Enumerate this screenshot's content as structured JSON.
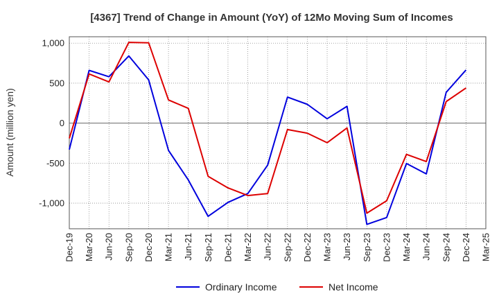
{
  "chart_data": {
    "type": "line",
    "title": "[4367]  Trend of Change in Amount (YoY) of 12Mo Moving Sum of Incomes",
    "xlabel": "",
    "ylabel": "Amount (million yen)",
    "categories": [
      "Dec-19",
      "Mar-20",
      "Jun-20",
      "Sep-20",
      "Dec-20",
      "Mar-21",
      "Jun-21",
      "Sep-21",
      "Dec-21",
      "Mar-22",
      "Jun-22",
      "Sep-22",
      "Dec-22",
      "Mar-23",
      "Jun-23",
      "Sep-23",
      "Dec-23",
      "Mar-24",
      "Jun-24",
      "Sep-24",
      "Dec-24",
      "Mar-25"
    ],
    "yticks": [
      1000,
      500,
      0,
      -500,
      -1000
    ],
    "ytick_labels": [
      "1,000",
      "500",
      "0",
      "-500",
      "-1,000"
    ],
    "ylim": [
      -1320,
      1080
    ],
    "grid": true,
    "legend_position": "bottom",
    "series": [
      {
        "name": "Ordinary Income",
        "color": "#0000dd",
        "values": [
          -330,
          660,
          580,
          840,
          540,
          -340,
          -710,
          -1165,
          -990,
          -880,
          -525,
          325,
          235,
          55,
          210,
          -1265,
          -1180,
          -505,
          -635,
          385,
          665,
          null
        ]
      },
      {
        "name": "Net Income",
        "color": "#dd0000",
        "values": [
          -190,
          615,
          515,
          1010,
          1005,
          290,
          185,
          -665,
          -810,
          -905,
          -880,
          -80,
          -125,
          -245,
          -60,
          -1125,
          -970,
          -390,
          -480,
          270,
          440,
          null
        ]
      }
    ]
  }
}
